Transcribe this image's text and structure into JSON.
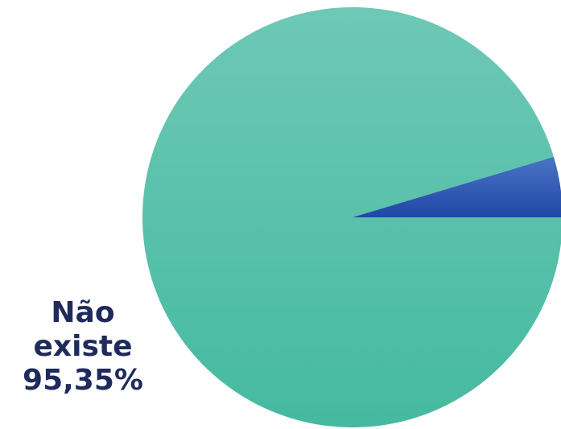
{
  "chart_data": {
    "type": "pie",
    "title": "",
    "slices": [
      {
        "label_lines": [
          "Não",
          "existe",
          "95,35%"
        ],
        "value": 95.35,
        "color": "#4fc1a8"
      },
      {
        "label_lines": [],
        "value": 4.65,
        "color": "#2a56b0"
      }
    ]
  }
}
